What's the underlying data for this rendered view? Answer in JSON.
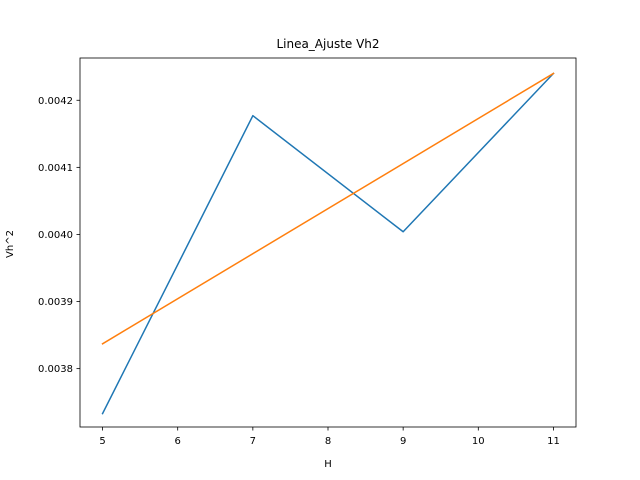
{
  "chart_data": {
    "type": "line",
    "title": "Linea_Ajuste Vh2",
    "xlabel": "H",
    "ylabel": "Vh^2",
    "xlim": [
      4.7,
      11.3
    ],
    "ylim": [
      0.003713,
      0.004263
    ],
    "xticks": [
      5,
      6,
      7,
      8,
      9,
      10,
      11
    ],
    "yticks": [
      0.0038,
      0.0039,
      0.004,
      0.0041,
      0.0042
    ],
    "ytick_labels": [
      "0.0038",
      "0.0039",
      "0.0040",
      "0.0041",
      "0.0042"
    ],
    "grid": false,
    "series": [
      {
        "x": [
          5,
          7,
          9,
          11
        ],
        "values": [
          0.003733,
          0.004177,
          0.004004,
          0.00424
        ],
        "color": "#1f77b4"
      },
      {
        "x": [
          5,
          11
        ],
        "values": [
          0.003837,
          0.00424
        ],
        "color": "#ff7f0e"
      }
    ]
  }
}
